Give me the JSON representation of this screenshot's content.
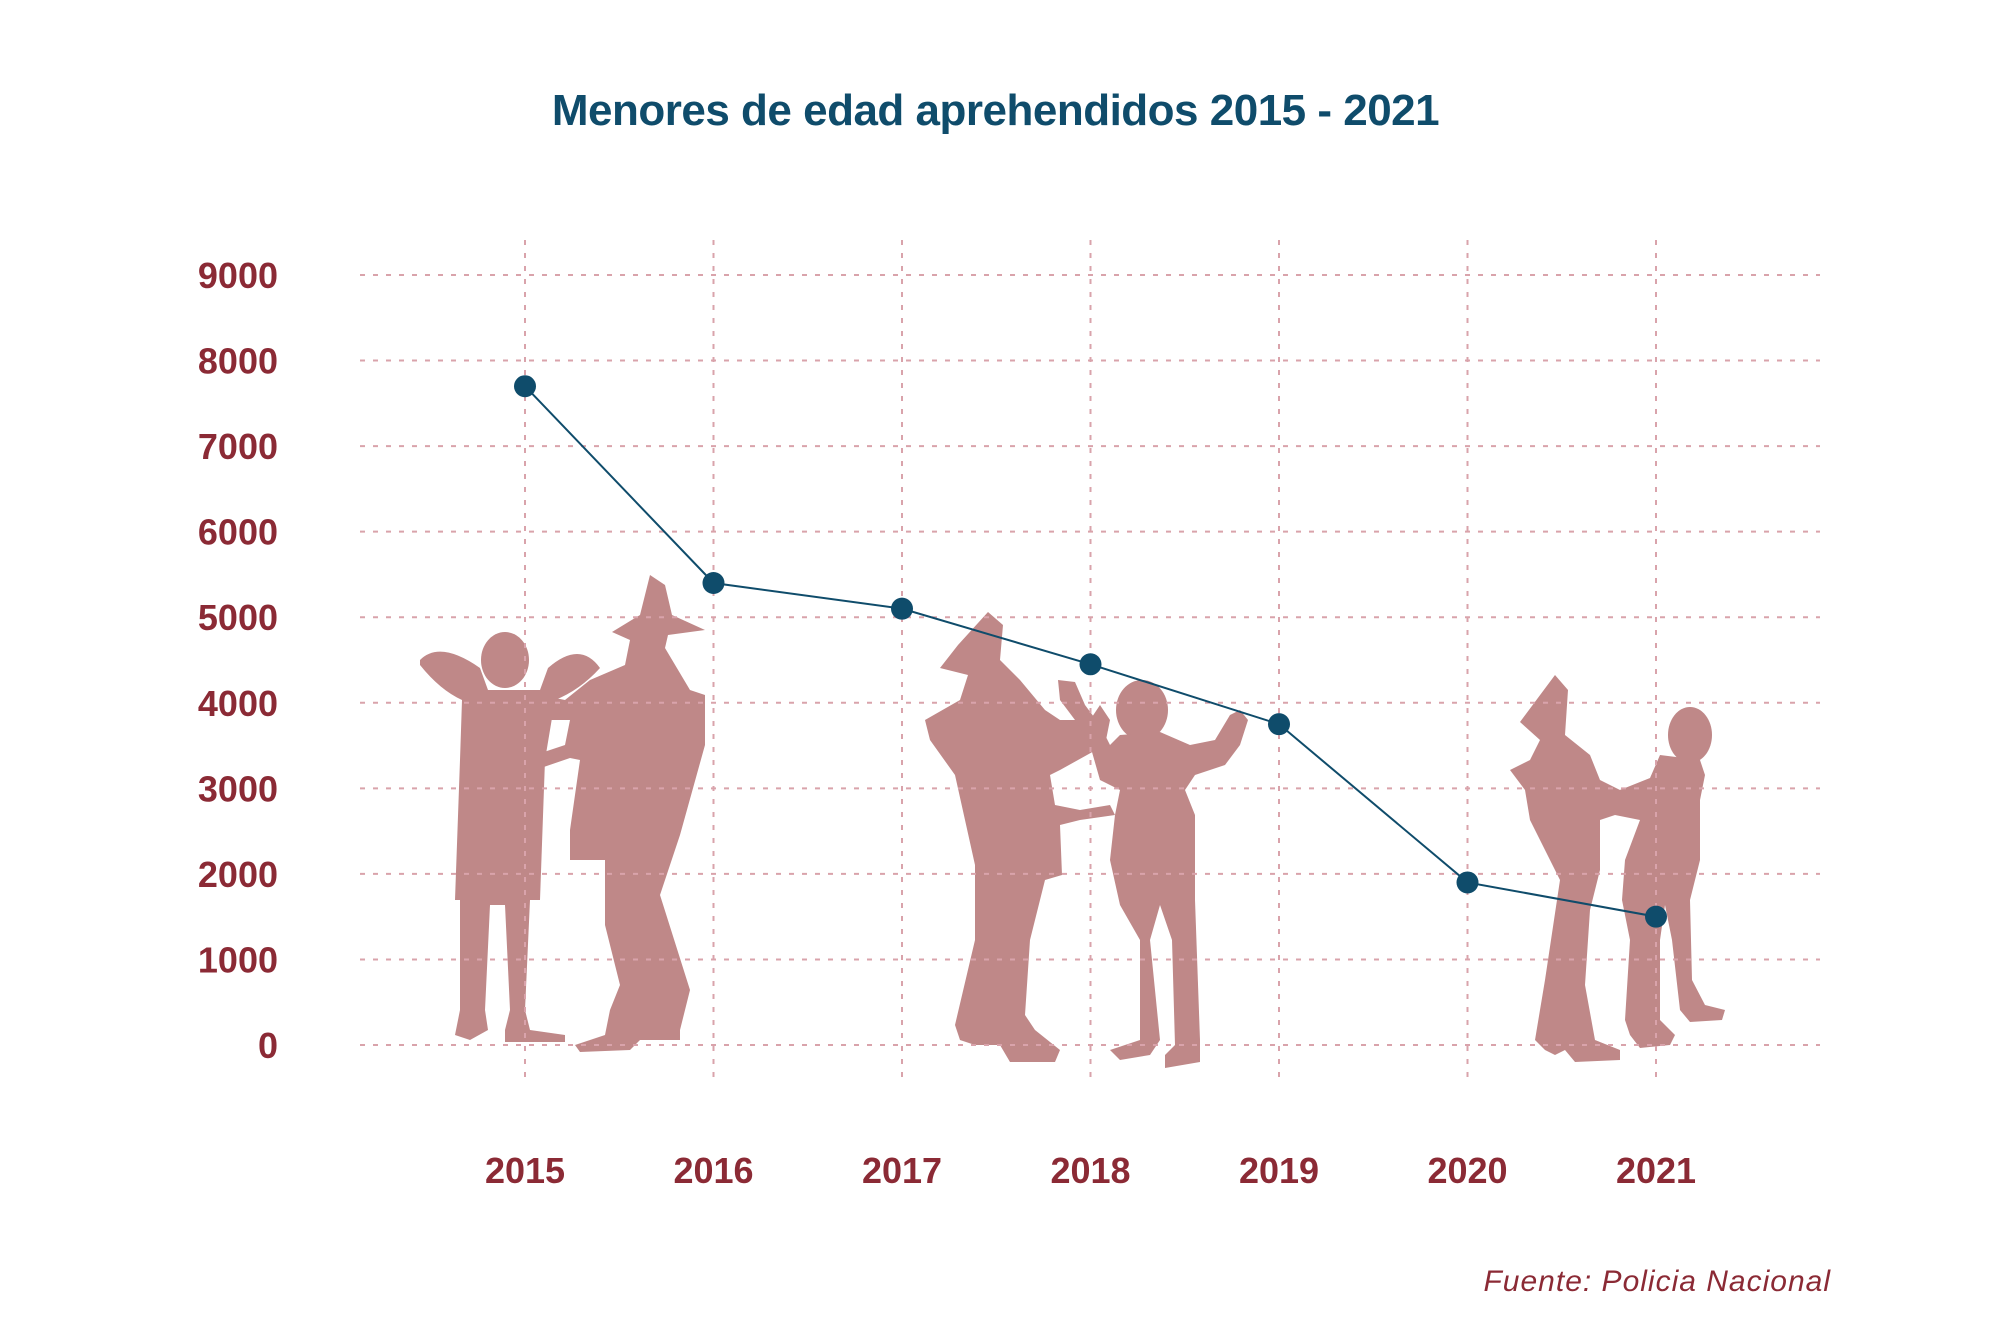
{
  "colors": {
    "line": "#0f4c6b",
    "marker": "#0f4c6b",
    "axis_text": "#8b2a35",
    "grid": "#d9a3ab",
    "silhouette": "#bf8888",
    "title": "#0f4c6b"
  },
  "chart_data": {
    "type": "line",
    "title": "Menores de edad aprehendidos 2015 - 2021",
    "xlabel": "",
    "ylabel": "",
    "categories": [
      "2015",
      "2016",
      "2017",
      "2018",
      "2019",
      "2020",
      "2021"
    ],
    "series": [
      {
        "values": [
          7700,
          5400,
          5100,
          4450,
          3750,
          1900,
          1500
        ]
      }
    ],
    "ylim": [
      0,
      9000
    ],
    "yticks": [
      "0",
      "1000",
      "2000",
      "3000",
      "4000",
      "5000",
      "6000",
      "7000",
      "8000",
      "9000"
    ],
    "grid": true,
    "grid_style": "dashed",
    "legend": "none",
    "source": "Fuente: Policia Nacional"
  }
}
